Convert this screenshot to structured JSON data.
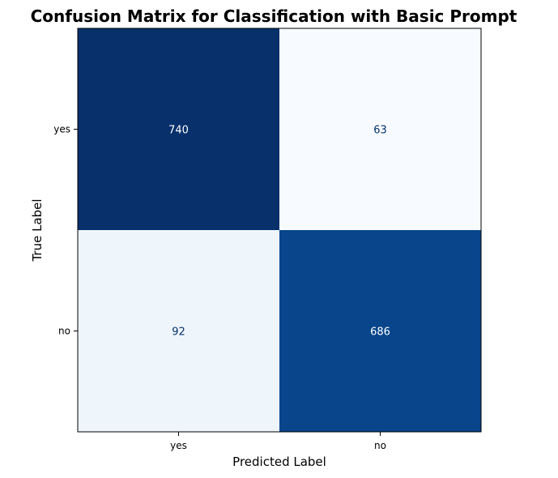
{
  "chart_data": {
    "type": "heatmap",
    "title": "Confusion Matrix for Classification with Basic Prompt",
    "xlabel": "Predicted Label",
    "ylabel": "True Label",
    "x_categories": [
      "yes",
      "no"
    ],
    "y_categories": [
      "yes",
      "no"
    ],
    "values": [
      [
        740,
        63
      ],
      [
        92,
        686
      ]
    ],
    "colormap": "Blues",
    "value_range": [
      63,
      740
    ],
    "colorbar": false,
    "grid": false,
    "text_colors": {
      "dark": "#08306b",
      "light": "#ffffff"
    }
  }
}
